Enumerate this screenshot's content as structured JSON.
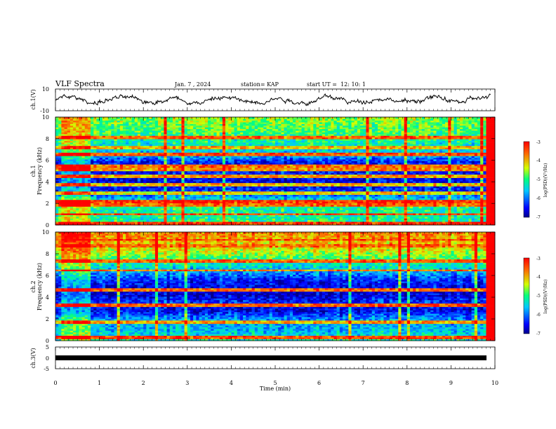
{
  "header": {
    "title": "VLF Spectra",
    "date": "Jan. 7 , 2024",
    "station": "station= KAP",
    "start": "start UT =  12: 10: 1"
  },
  "chart_data": [
    {
      "type": "line",
      "name": "ch1_waveform",
      "ylabel": "ch.1(V)",
      "ylim": [
        -10,
        10
      ],
      "yticks": [
        "10",
        "-10"
      ],
      "xlim": [
        0,
        10
      ]
    },
    {
      "type": "heatmap",
      "name": "ch1_spectrogram",
      "ylabel": "ch.1\nFrequency (kHz)",
      "ylabel_top": "ch.1",
      "ylabel_bottom": "Frequency (kHz)",
      "ylim": [
        0,
        10
      ],
      "yticks": [
        "0",
        "2",
        "4",
        "6",
        "8",
        "10"
      ],
      "xlim": [
        0,
        10
      ],
      "colorbar": {
        "label": "log(PSD)(V²/Hz)",
        "range": [
          -7,
          -3
        ],
        "ticks": [
          "-3",
          "-4",
          "-5",
          "-6",
          "-7"
        ]
      },
      "bands": [
        {
          "f": 0.2,
          "level": -3.3
        },
        {
          "f": 1.0,
          "level": -3.4
        },
        {
          "f": 1.9,
          "level": -3.6
        },
        {
          "f": 2.2,
          "level": -3.3
        },
        {
          "f": 3.0,
          "level": -4.2
        },
        {
          "f": 3.7,
          "level": -4.0
        },
        {
          "f": 4.5,
          "level": -3.9
        },
        {
          "f": 5.1,
          "level": -3.8
        },
        {
          "f": 5.5,
          "level": -3.6
        },
        {
          "f": 6.6,
          "level": -3.5
        },
        {
          "f": 7.2,
          "level": -4.0
        },
        {
          "f": 8.1,
          "level": -3.6
        }
      ],
      "background_profile": [
        {
          "f": 0,
          "level": -5.0
        },
        {
          "f": 1,
          "level": -5.2
        },
        {
          "f": 2,
          "level": -5.0
        },
        {
          "f": 3,
          "level": -6.3
        },
        {
          "f": 4,
          "level": -6.6
        },
        {
          "f": 5,
          "level": -6.4
        },
        {
          "f": 5.8,
          "level": -6.5
        },
        {
          "f": 6.5,
          "level": -5.6
        },
        {
          "f": 7.5,
          "level": -5.3
        },
        {
          "f": 8.5,
          "level": -4.9
        },
        {
          "f": 10,
          "level": -4.6
        }
      ]
    },
    {
      "type": "heatmap",
      "name": "ch2_spectrogram",
      "ylabel": "ch.2\nFrequency (kHz)",
      "ylabel_top": "ch.2",
      "ylabel_bottom": "Frequency (kHz)",
      "ylim": [
        0,
        10
      ],
      "yticks": [
        "0",
        "2",
        "4",
        "6",
        "8",
        "10"
      ],
      "xlim": [
        0,
        10
      ],
      "colorbar": {
        "label": "log(PSD)(V²/Hz)",
        "range": [
          -7,
          -3
        ],
        "ticks": [
          "-3",
          "-4",
          "-5",
          "-6",
          "-7"
        ]
      },
      "bands": [
        {
          "f": 0.3,
          "level": -3.4
        },
        {
          "f": 1.7,
          "level": -3.9
        },
        {
          "f": 3.3,
          "level": -3.5
        },
        {
          "f": 4.7,
          "level": -3.6
        },
        {
          "f": 6.5,
          "level": -3.7
        },
        {
          "f": 7.4,
          "level": -3.5
        },
        {
          "f": 8.7,
          "level": -3.6
        },
        {
          "f": 9.3,
          "level": -3.4
        }
      ],
      "background_profile": [
        {
          "f": 0,
          "level": -5.2
        },
        {
          "f": 1,
          "level": -5.6
        },
        {
          "f": 2,
          "level": -5.8
        },
        {
          "f": 2.8,
          "level": -6.6
        },
        {
          "f": 3.6,
          "level": -6.3
        },
        {
          "f": 4.2,
          "level": -6.7
        },
        {
          "f": 5.5,
          "level": -6.4
        },
        {
          "f": 6.5,
          "level": -5.6
        },
        {
          "f": 7.5,
          "level": -4.9
        },
        {
          "f": 8.5,
          "level": -4.2
        },
        {
          "f": 10,
          "level": -3.7
        }
      ]
    },
    {
      "type": "line",
      "name": "ch3_waveform",
      "ylabel": "ch.3(V)",
      "ylim": [
        -5,
        5
      ],
      "yticks": [
        "5",
        "0",
        "-5"
      ],
      "xlim": [
        0,
        10
      ],
      "level": 0
    }
  ],
  "x_axis": {
    "label": "Time  (min)",
    "ticks": [
      "0",
      "1",
      "2",
      "3",
      "4",
      "5",
      "6",
      "7",
      "8",
      "9",
      "10"
    ]
  }
}
